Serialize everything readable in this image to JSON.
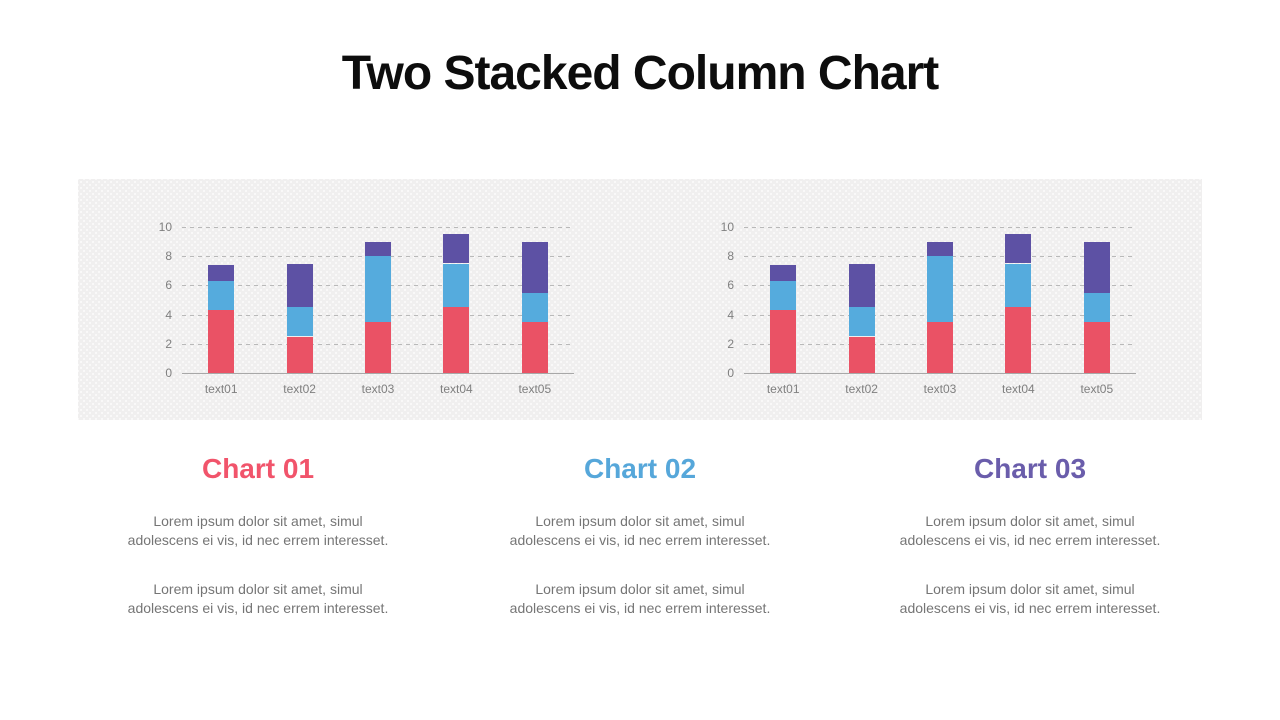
{
  "slide": {
    "title": "Two Stacked Column Chart",
    "background": "#ffffff"
  },
  "charts_panel": {
    "background": "#f0efef"
  },
  "chart_data": [
    {
      "type": "bar",
      "stacked": true,
      "title": "",
      "categories": [
        "text01",
        "text02",
        "text03",
        "text04",
        "text05"
      ],
      "series": [
        {
          "name": "bottom-segment",
          "color": "#ea5265",
          "values": [
            4.3,
            2.5,
            3.5,
            4.5,
            3.5
          ]
        },
        {
          "name": "middle-segment",
          "color": "#55abdd",
          "values": [
            2.0,
            2.0,
            4.5,
            3.0,
            2.0
          ]
        },
        {
          "name": "top-segment",
          "color": "#5d51a4",
          "values": [
            1.1,
            3.0,
            1.0,
            2.0,
            3.5
          ]
        }
      ],
      "ylim": [
        0,
        10
      ],
      "yticks": [
        0,
        2,
        4,
        6,
        8,
        10
      ],
      "grid": "dashed-horizontal",
      "legend": "none",
      "axis_color": "#a8a8a8",
      "gridline_color": "#b9b9b9",
      "tick_label_color": "#7f7f7f"
    },
    {
      "type": "bar",
      "stacked": true,
      "title": "",
      "categories": [
        "text01",
        "text02",
        "text03",
        "text04",
        "text05"
      ],
      "series": [
        {
          "name": "bottom-segment",
          "color": "#ea5265",
          "values": [
            4.3,
            2.5,
            3.5,
            4.5,
            3.5
          ]
        },
        {
          "name": "middle-segment",
          "color": "#55abdd",
          "values": [
            2.0,
            2.0,
            4.5,
            3.0,
            2.0
          ]
        },
        {
          "name": "top-segment",
          "color": "#5d51a4",
          "values": [
            1.1,
            3.0,
            1.0,
            2.0,
            3.5
          ]
        }
      ],
      "ylim": [
        0,
        10
      ],
      "yticks": [
        0,
        2,
        4,
        6,
        8,
        10
      ],
      "grid": "dashed-horizontal",
      "legend": "none",
      "axis_color": "#a8a8a8",
      "gridline_color": "#b9b9b9",
      "tick_label_color": "#7f7f7f"
    }
  ],
  "callouts": [
    {
      "title": "Chart 01",
      "accent_color": "#f1546b",
      "paragraph1": "Lorem ipsum dolor sit amet, simul\nadolescens ei vis, id nec errem interesset.",
      "paragraph2": "Lorem ipsum dolor sit amet, simul\nadolescens ei vis, id nec errem interesset."
    },
    {
      "title": "Chart 02",
      "accent_color": "#56a7da",
      "paragraph1": "Lorem ipsum dolor sit amet, simul\nadolescens ei vis, id nec errem interesset.",
      "paragraph2": "Lorem ipsum dolor sit amet, simul\nadolescens ei vis, id nec errem interesset."
    },
    {
      "title": "Chart 03",
      "accent_color": "#6a5dab",
      "paragraph1": "Lorem ipsum dolor sit amet, simul\nadolescens ei vis, id nec errem interesset.",
      "paragraph2": "Lorem ipsum dolor sit amet, simul\nadolescens ei vis, id nec errem interesset."
    }
  ]
}
